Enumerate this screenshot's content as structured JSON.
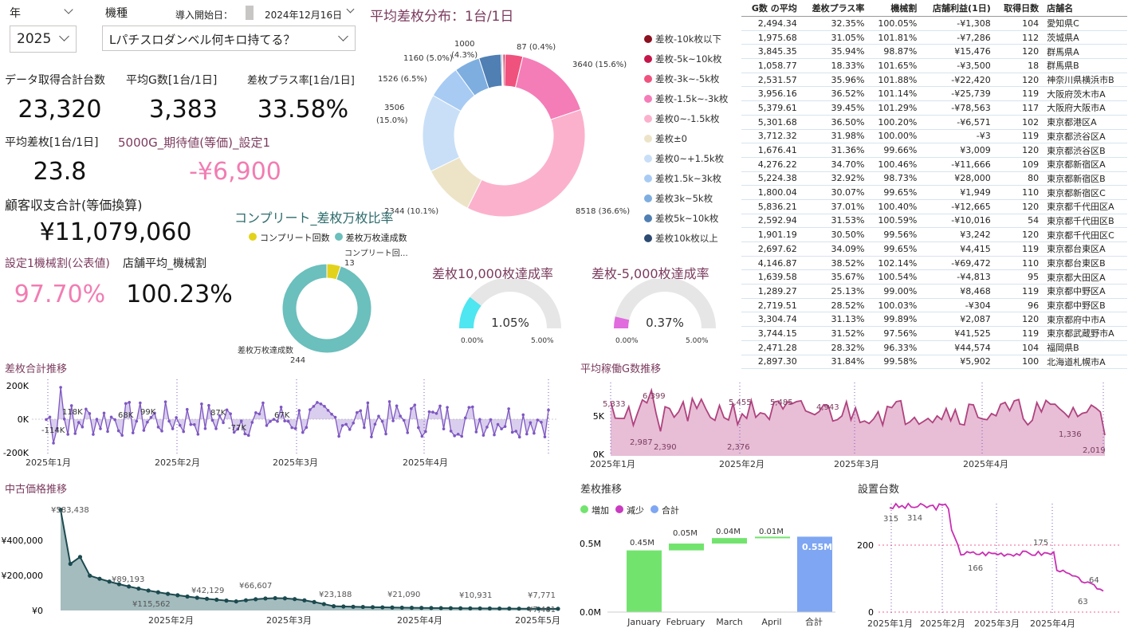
{
  "filters": {
    "year_label": "年",
    "year_value": "2025",
    "model_label": "機種",
    "model_value": "Lパチスロダンベル何キロ持てる？",
    "start_label": "導入開始日：",
    "start_value": "2024年12月16日"
  },
  "kpi": {
    "total_units_label": "データ取得合計台数",
    "total_units": "23,320",
    "avg_games_label": "平均G数[1台/1日]",
    "avg_games": "3,383",
    "plus_rate_label": "差枚プラス率[1台/1日]",
    "plus_rate": "33.58%",
    "avg_diff_label": "平均差枚[1台/1日]",
    "avg_diff": "23.8",
    "expected_label": "5000G_期待値(等価)_設定1",
    "expected": "-¥6,900",
    "balance_label": "顧客収支合計(等価換算)",
    "balance": "¥11,079,060",
    "setting1_label": "設定1機械割(公表値)",
    "setting1": "97.70%",
    "store_avg_label": "店舗平均_機械割",
    "store_avg": "100.23%"
  },
  "dist": {
    "title": "平均差枚分布：1台/1日",
    "legend": [
      {
        "name": "差枚-10k枚以下",
        "color": "#8b1020"
      },
      {
        "name": "差枚-5k~10k枚",
        "color": "#c5164a"
      },
      {
        "name": "差枚-3k~-5k枚",
        "color": "#f0527e"
      },
      {
        "name": "差枚-1.5k~-3k枚",
        "color": "#f47db7"
      },
      {
        "name": "差枚0~-1.5k枚",
        "color": "#fbb1cc"
      },
      {
        "name": "差枚±0",
        "color": "#ede4c8"
      },
      {
        "name": "差枚0~+1.5k枚",
        "color": "#c8dff7"
      },
      {
        "name": "差枚1.5k~3k枚",
        "color": "#a8cbf4"
      },
      {
        "name": "差枚3k~5k枚",
        "color": "#7eaee0"
      },
      {
        "name": "差枚5k~10k枚",
        "color": "#4f7fb3"
      },
      {
        "name": "差枚10k枚以上",
        "color": "#2c4a72"
      }
    ],
    "labels": [
      "87 (0.4%)",
      "3640 (15.6%)",
      "8518 (36.6%)",
      "2344 (10.1%)",
      "3506",
      "(15.0%)",
      "1526 (6.5%)",
      "1160 (5.0%)",
      "1000",
      "(4.3%)"
    ]
  },
  "complete": {
    "title": "コンプリート_差枚万枚比率",
    "legend": [
      "コンプリート回数",
      "差枚万枚達成数"
    ],
    "label_complete": "コンプリート回…",
    "value_complete": "13",
    "label_achieved": "差枚万枚達成数",
    "value_achieved": "244"
  },
  "gauge1": {
    "title": "差枚10,000枚達成率",
    "value": "1.05%",
    "min": "0.00%",
    "max": "5.00%"
  },
  "gauge2": {
    "title": "差枚-5,000枚達成率",
    "value": "0.37%",
    "min": "0.00%",
    "max": "5.00%"
  },
  "table": {
    "headers": [
      "G数 の平均",
      "差枚プラス率",
      "機械割",
      "店舗利益(1日)",
      "取得日数",
      "店舗名"
    ],
    "rows": [
      [
        "2,494.34",
        "32.35%",
        "100.05%",
        "-¥1,308",
        "104",
        "愛知県C"
      ],
      [
        "1,975.68",
        "31.05%",
        "101.81%",
        "-¥7,286",
        "112",
        "茨城県A"
      ],
      [
        "3,845.35",
        "35.94%",
        "98.87%",
        "¥15,476",
        "120",
        "群馬県A"
      ],
      [
        "1,058.77",
        "18.33%",
        "101.65%",
        "-¥3,500",
        "18",
        "群馬県B"
      ],
      [
        "2,531.57",
        "35.96%",
        "101.88%",
        "-¥22,420",
        "120",
        "神奈川県横浜市B"
      ],
      [
        "3,956.16",
        "36.52%",
        "101.14%",
        "-¥25,739",
        "119",
        "大阪府茨木市A"
      ],
      [
        "5,379.61",
        "39.45%",
        "101.29%",
        "-¥78,563",
        "117",
        "大阪府大阪市A"
      ],
      [
        "5,301.68",
        "36.50%",
        "100.20%",
        "-¥6,571",
        "102",
        "東京都港区A"
      ],
      [
        "3,712.32",
        "31.98%",
        "100.00%",
        "-¥3",
        "119",
        "東京都渋谷区A"
      ],
      [
        "1,676.41",
        "31.36%",
        "99.66%",
        "¥3,009",
        "120",
        "東京都渋谷区B"
      ],
      [
        "4,276.22",
        "34.70%",
        "100.46%",
        "-¥11,666",
        "109",
        "東京都新宿区A"
      ],
      [
        "5,224.38",
        "32.92%",
        "98.73%",
        "¥28,000",
        "80",
        "東京都新宿区B"
      ],
      [
        "1,800.04",
        "30.07%",
        "99.65%",
        "¥1,949",
        "110",
        "東京都新宿区C"
      ],
      [
        "5,836.21",
        "37.01%",
        "100.40%",
        "-¥12,665",
        "120",
        "東京都千代田区A"
      ],
      [
        "2,592.94",
        "31.53%",
        "100.59%",
        "-¥10,016",
        "54",
        "東京都千代田区B"
      ],
      [
        "1,901.19",
        "30.50%",
        "99.56%",
        "¥3,242",
        "120",
        "東京都千代田区C"
      ],
      [
        "2,697.62",
        "34.09%",
        "99.65%",
        "¥4,415",
        "119",
        "東京都台東区A"
      ],
      [
        "4,146.87",
        "38.52%",
        "102.14%",
        "-¥69,472",
        "110",
        "東京都台東区B"
      ],
      [
        "1,639.58",
        "35.67%",
        "100.54%",
        "-¥4,813",
        "95",
        "東京都大田区A"
      ],
      [
        "1,289.27",
        "25.13%",
        "99.00%",
        "¥8,468",
        "119",
        "東京都中野区A"
      ],
      [
        "2,719.51",
        "28.52%",
        "100.03%",
        "-¥304",
        "96",
        "東京都中野区B"
      ],
      [
        "3,304.74",
        "31.13%",
        "99.89%",
        "¥2,087",
        "120",
        "東京都府中市A"
      ],
      [
        "3,744.15",
        "31.52%",
        "97.56%",
        "¥41,525",
        "119",
        "東京都武蔵野市A"
      ],
      [
        "2,471.28",
        "28.32%",
        "96.33%",
        "¥44,574",
        "104",
        "福岡県B"
      ],
      [
        "2,897.30",
        "31.84%",
        "99.58%",
        "¥5,902",
        "100",
        "北海道札幌市A"
      ]
    ]
  },
  "diff_trend": {
    "title": "差枚合計推移",
    "yticks": [
      "200K",
      "0K",
      "-200K"
    ],
    "xticks": [
      "2025年1月",
      "2025年2月",
      "2025年3月",
      "2025年4月"
    ],
    "labels": [
      "118K",
      "-114K",
      "68K",
      "99K",
      "87K",
      "-77K",
      "67K"
    ]
  },
  "games_trend": {
    "title": "平均稼働G数推移",
    "yticks": [
      "5K",
      "0K"
    ],
    "xticks": [
      "2025年1月",
      "2025年2月",
      "2025年3月",
      "2025年4月"
    ],
    "labels": [
      "5,333",
      "6,399",
      "2,987",
      "2,390",
      "5,455",
      "2,376",
      "5,485",
      "4,943",
      "1,336",
      "2,019"
    ]
  },
  "price_trend": {
    "title": "中古価格推移",
    "yticks": [
      "¥400,000",
      "¥200,000",
      "¥0"
    ],
    "xticks": [
      "2025年2月",
      "2025年3月",
      "2025年4月",
      "2025年5月"
    ],
    "labels": [
      "¥583,438",
      "¥89,193",
      "¥115,562",
      "¥42,129",
      "¥66,607",
      "¥23,188",
      "¥21,090",
      "¥10,931",
      "¥7,771",
      "¥7,461"
    ]
  },
  "waterfall": {
    "title": "差枚推移",
    "legend": [
      "増加",
      "減少",
      "合計"
    ],
    "yticks": [
      "0.5M",
      "0.0M"
    ],
    "categories": [
      "January",
      "February",
      "March",
      "April",
      "合計"
    ],
    "labels": [
      "0.45M",
      "0.05M",
      "0.04M",
      "0.01M",
      "0.55M"
    ]
  },
  "installs": {
    "title": "設置台数",
    "yticks": [
      "200",
      "0"
    ],
    "xticks": [
      "2025年1月",
      "2025年2月",
      "2025年3月",
      "2025年4月"
    ],
    "labels": [
      "315",
      "314",
      "166",
      "175",
      "64",
      "63"
    ]
  },
  "chart_data": [
    {
      "type": "pie",
      "title": "平均差枚分布：1台/1日",
      "categories": [
        "差枚-10k枚以下",
        "差枚-5k~10k枚",
        "差枚-3k~-5k枚",
        "差枚-1.5k~-3k枚",
        "差枚0~-1.5k枚",
        "差枚±0",
        "差枚0~+1.5k枚",
        "差枚1.5k~3k枚",
        "差枚3k~5k枚",
        "差枚5k~10k枚",
        "差枚10k枚以上"
      ],
      "values": [
        40,
        87,
        800,
        3640,
        8518,
        2344,
        3506,
        1526,
        1160,
        1000,
        50
      ]
    },
    {
      "type": "pie",
      "title": "コンプリート_差枚万枚比率",
      "categories": [
        "コンプリート回数",
        "差枚万枚達成数"
      ],
      "values": [
        13,
        244
      ]
    },
    {
      "type": "area",
      "title": "差枚合計推移",
      "ylim": [
        -200000,
        200000
      ]
    },
    {
      "type": "area",
      "title": "平均稼働G数推移",
      "ylim": [
        0,
        7000
      ]
    },
    {
      "type": "area",
      "title": "中古価格推移",
      "ylim": [
        0,
        600000
      ]
    },
    {
      "type": "bar",
      "title": "差枚推移",
      "categories": [
        "January",
        "February",
        "March",
        "April",
        "合計"
      ],
      "values": [
        0.45,
        0.05,
        0.04,
        0.01,
        0.55
      ]
    },
    {
      "type": "line",
      "title": "設置台数",
      "ylim": [
        0,
        340
      ]
    }
  ]
}
